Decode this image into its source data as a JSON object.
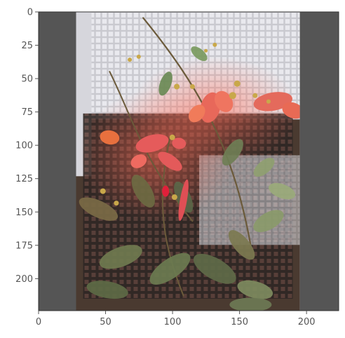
{
  "chart_data": {
    "type": "image",
    "title": "",
    "xlabel": "",
    "ylabel": "",
    "xlim": [
      0,
      224
    ],
    "ylim": [
      224,
      0
    ],
    "x_ticks": [
      0,
      50,
      100,
      150,
      200
    ],
    "y_ticks": [
      0,
      25,
      50,
      75,
      100,
      125,
      150,
      175,
      200
    ],
    "x_tick_labels": [
      "0",
      "50",
      "100",
      "150",
      "200"
    ],
    "y_tick_labels": [
      "0",
      "25",
      "50",
      "75",
      "100",
      "125",
      "150",
      "175",
      "200"
    ],
    "image_region": {
      "x_start": 28,
      "x_end": 195,
      "y_start": 0,
      "y_end": 224
    },
    "grid": false,
    "colors": {
      "padding": "#555555",
      "frame": "#333333",
      "leaves": "#6f7a4f",
      "flowers": "#e8685a",
      "mesh": "#d8d8de",
      "soil": "#4a3a30"
    },
    "image_content": "photo of a plant with red-orange flowers and green leaves over a gray plastic mesh crate"
  }
}
